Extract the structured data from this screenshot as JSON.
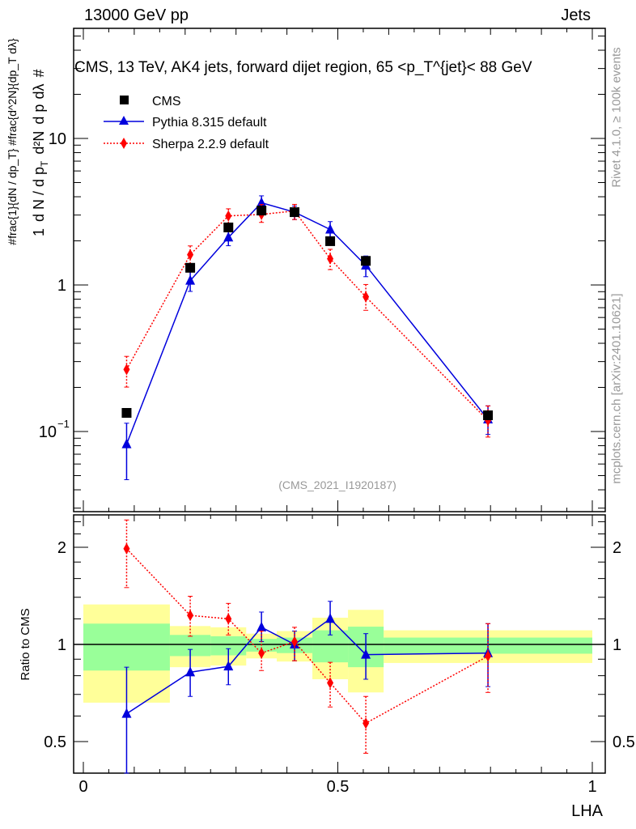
{
  "header": {
    "left": "13000 GeV pp",
    "right": "Jets"
  },
  "side_texts": {
    "rivet": "Rivet 4.1.0, ≥ 100k events",
    "mcplots": "mcplots.cern.ch [arXiv:2401.10621]"
  },
  "chart_data": [
    {
      "type": "scatter",
      "title": "CMS, 13 TeV, AK4 jets, forward dijet region, 65 <p_T^{jet}< 88 GeV",
      "title_main": "CMS, 13 TeV, AK4 jets, forward dijet region, 65 <p",
      "title_sup": "{jet}",
      "title_sub": "T",
      "title_end": "}< 88 GeV",
      "ylabel": "#frac{1}{dN / dp_T} #frac{d^2N}{dp_T dλ}",
      "ylabel_parts": {
        "num1": "1",
        "den1": "d N / d p",
        "num2": "d²N",
        "den2": "d p",
        "sub": "T",
        "end": "dλ",
        "hash": "#"
      },
      "yscale": "log",
      "ylim": [
        0.028,
        56
      ],
      "xlim": [
        -0.02,
        1.025
      ],
      "yticks": [
        {
          "v": 10,
          "label": "10"
        },
        {
          "v": 1,
          "label": "1"
        },
        {
          "v": 0.1,
          "label": "10",
          "exp": "−1"
        }
      ],
      "watermark": "(CMS_2021_I1920187)",
      "legend_position": "top-left",
      "x": [
        0.085,
        0.21,
        0.285,
        0.35,
        0.415,
        0.485,
        0.555,
        0.795
      ],
      "bin_edges": [
        0,
        0.17,
        0.25,
        0.32,
        0.38,
        0.45,
        0.52,
        0.59,
        1.0
      ],
      "series": [
        {
          "name": "CMS",
          "color": "#000000",
          "marker": "square",
          "values": [
            0.134,
            1.31,
            2.47,
            3.22,
            3.14,
            1.99,
            1.46,
            0.129
          ]
        },
        {
          "name": "Pythia 8.315 default",
          "color": "#0000dd",
          "marker": "triangle",
          "line": "solid",
          "values": [
            0.082,
            1.07,
            2.11,
            3.64,
            3.14,
            2.39,
            1.36,
            0.121
          ]
        },
        {
          "name": "Sherpa 2.2.9 default",
          "color": "#ff0000",
          "marker": "diamond",
          "line": "dotted",
          "values": [
            0.265,
            1.61,
            2.96,
            3.03,
            3.2,
            1.51,
            0.83,
            0.119
          ]
        }
      ]
    },
    {
      "type": "scatter",
      "ylabel": "Ratio to CMS",
      "xlabel": "LHA",
      "yscale": "log",
      "ylim": [
        0.4,
        2.52
      ],
      "yticks": [
        {
          "v": 2,
          "label": "2"
        },
        {
          "v": 1,
          "label": "1"
        },
        {
          "v": 0.5,
          "label": "0.5"
        }
      ],
      "xticks": [
        {
          "v": 0,
          "label": "0"
        },
        {
          "v": 0.5,
          "label": "0.5"
        },
        {
          "v": 1,
          "label": "1"
        }
      ],
      "band_total": {
        "color": "#ffff99",
        "hi": [
          1.33,
          1.14,
          1.13,
          1.08,
          1.1,
          1.21,
          1.28,
          1.106
        ],
        "lo": [
          0.66,
          0.85,
          0.86,
          0.905,
          0.885,
          0.78,
          0.71,
          0.876
        ]
      },
      "band_stat": {
        "color": "#99ff99",
        "hi": [
          1.16,
          1.07,
          1.06,
          1.04,
          1.05,
          1.106,
          1.135,
          1.05
        ],
        "lo": [
          0.83,
          0.92,
          0.925,
          0.95,
          0.94,
          0.88,
          0.85,
          0.936
        ]
      },
      "series": [
        {
          "name": "Pythia 8.315 default",
          "values": [
            0.61,
            0.82,
            0.855,
            1.13,
            1.0,
            1.2,
            0.93,
            0.94
          ],
          "err_hi": [
            0.85,
            0.965,
            0.97,
            1.26,
            1.1,
            1.36,
            1.08,
            1.16
          ],
          "err_lo": [
            0.35,
            0.69,
            0.75,
            1.02,
            0.89,
            1.07,
            0.78,
            0.74
          ]
        },
        {
          "name": "Sherpa 2.2.9 default",
          "values": [
            1.98,
            1.23,
            1.2,
            0.94,
            1.02,
            0.76,
            0.57,
            0.92
          ],
          "err_hi": [
            2.43,
            1.41,
            1.34,
            1.1,
            1.13,
            0.88,
            0.69,
            1.16
          ],
          "err_lo": [
            1.5,
            1.06,
            1.07,
            0.83,
            0.89,
            0.64,
            0.46,
            0.71
          ]
        }
      ]
    }
  ]
}
